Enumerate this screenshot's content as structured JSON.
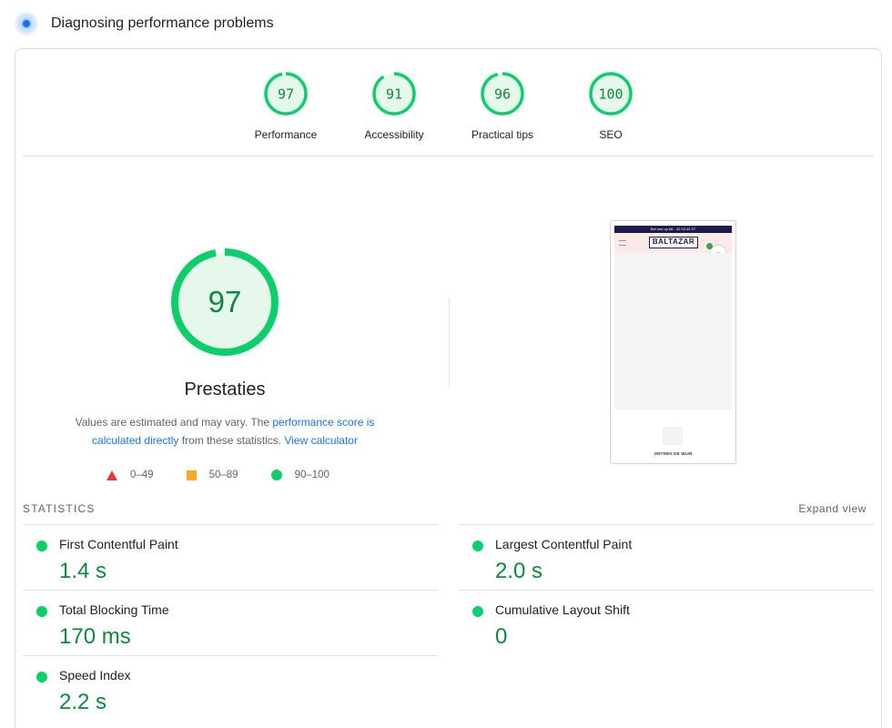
{
  "header": {
    "title": "Diagnosing performance problems",
    "icon": "lighthouse-icon"
  },
  "summary_gauges": [
    {
      "score": "97",
      "label": "Performance",
      "fraction": 0.97
    },
    {
      "score": "91",
      "label": "Accessibility",
      "fraction": 0.91
    },
    {
      "score": "96",
      "label": "Practical tips",
      "fraction": 0.96
    },
    {
      "score": "100",
      "label": "SEO",
      "fraction": 1.0
    }
  ],
  "main_gauge": {
    "score": "97",
    "fraction": 0.97,
    "title": "Prestaties"
  },
  "disclaimer": {
    "text_before": "Values are estimated and may vary. The ",
    "link_score": "performance score is calculated directly",
    "text_middle": " from these statistics. ",
    "link_calculator": "View calculator"
  },
  "legend": {
    "fail": "0–49",
    "average": "50–89",
    "pass": "90–100"
  },
  "preview": {
    "topbar_text": "Bel ons op 68 - 42 03 44 37",
    "logo": "BALTAZAR",
    "cta": "ONTDEK DE WIJN"
  },
  "statistics": {
    "label": "STATISTICS",
    "expand": "Expand view",
    "metrics": [
      {
        "name": "First Contentful Paint",
        "value": "1.4 s"
      },
      {
        "name": "Largest Contentful Paint",
        "value": "2.0 s"
      },
      {
        "name": "Total Blocking Time",
        "value": "170 ms"
      },
      {
        "name": "Cumulative Layout Shift",
        "value": "0"
      },
      {
        "name": "Speed Index",
        "value": "2.2 s"
      }
    ]
  },
  "colors": {
    "pass": "#0cce6b",
    "pass_text": "#0d8a3a",
    "average": "#f9a825",
    "fail": "#e53935",
    "link": "#1a73e8"
  }
}
